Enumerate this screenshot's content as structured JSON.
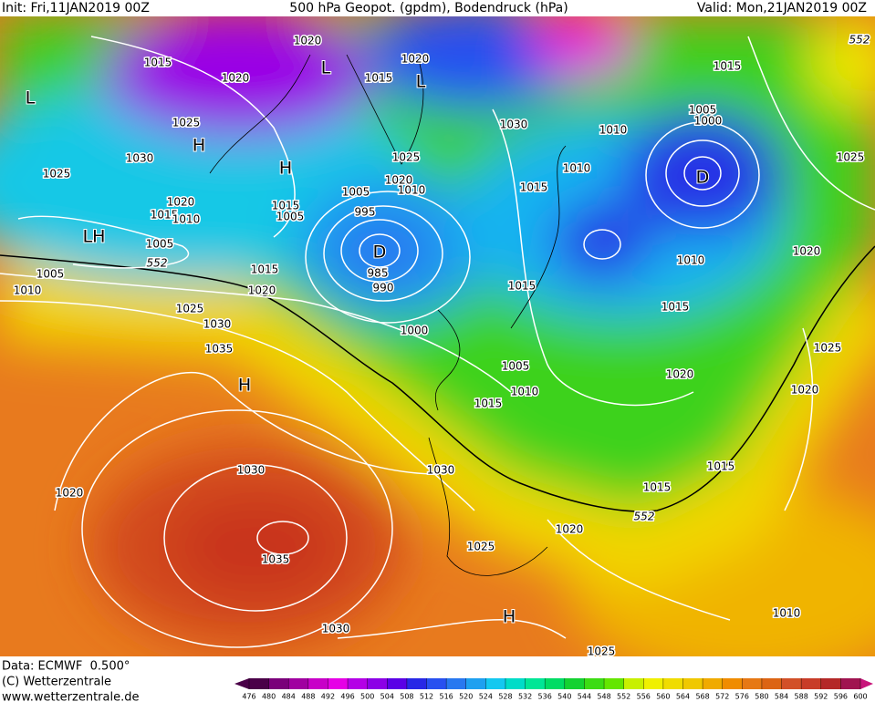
{
  "header": {
    "init": "Init: Fri,11JAN2019 00Z",
    "title": "500 hPa Geopot. (gpdm), Bodendruck (hPa)",
    "valid": "Valid: Mon,21JAN2019 00Z"
  },
  "map": {
    "isobar_labels": [
      "1020",
      "1015",
      "1020",
      "1015",
      "1020",
      "1025",
      "1030",
      "1025",
      "1025",
      "1020",
      "1010",
      "1005",
      "1020",
      "1015",
      "1010",
      "1015",
      "1005",
      "995",
      "1005",
      "1005",
      "1010",
      "1015",
      "1020",
      "985",
      "990",
      "1025",
      "1030",
      "1035",
      "1000",
      "1005",
      "1010",
      "1015",
      "1015",
      "1030",
      "1025",
      "1005",
      "1000",
      "1010",
      "1015",
      "1010",
      "1015",
      "1010",
      "1020",
      "1015",
      "1015",
      "1025",
      "1020",
      "1020",
      "1015",
      "1015",
      "1030",
      "1030",
      "1020",
      "1020",
      "1025",
      "1035",
      "1010",
      "1030",
      "1025"
    ],
    "height_labels": [
      "552",
      "552",
      "552"
    ],
    "pressure_centers": [
      "L",
      "H",
      "H",
      "L",
      "L",
      "D",
      "LH",
      "H",
      "D",
      "H"
    ]
  },
  "footer": {
    "data": "Data: ECMWF  0.500°",
    "copyright": "(C) Wetterzentrale",
    "url": "www.wetterzentrale.de"
  },
  "colorbar": {
    "ticks": [
      476,
      480,
      484,
      488,
      492,
      496,
      500,
      504,
      508,
      512,
      516,
      520,
      524,
      528,
      532,
      536,
      540,
      544,
      548,
      552,
      556,
      560,
      564,
      568,
      572,
      576,
      580,
      584,
      588,
      592,
      596,
      600
    ],
    "colors": [
      "#4a0048",
      "#7a007a",
      "#a000a0",
      "#c800c8",
      "#e600e6",
      "#b400e6",
      "#8c00e6",
      "#5a00e6",
      "#2828e6",
      "#2850f0",
      "#2878f0",
      "#1ea0f0",
      "#14c8f0",
      "#00dcc8",
      "#00e696",
      "#00dc64",
      "#14d232",
      "#3cdc14",
      "#64e600",
      "#c8f000",
      "#f0f000",
      "#f0dc00",
      "#f0c800",
      "#f0aa00",
      "#f08c00",
      "#e67814",
      "#dc6414",
      "#d25028",
      "#c83c28",
      "#b42828",
      "#a01450"
    ]
  }
}
